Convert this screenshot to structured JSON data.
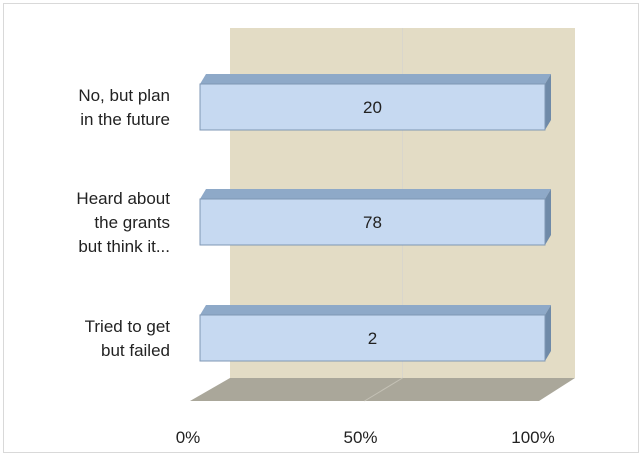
{
  "chart_data": {
    "type": "bar",
    "orientation": "horizontal",
    "stacked_percent": true,
    "three_d": true,
    "categories": [
      [
        "No, but plan",
        "in the future"
      ],
      [
        "Heard about",
        "the grants",
        "but think it..."
      ],
      [
        "Tried to get",
        "but failed"
      ]
    ],
    "series": [
      {
        "values": [
          20,
          78,
          2
        ]
      }
    ],
    "xlim": [
      0,
      100
    ],
    "x_ticks": [
      "0%",
      "50%",
      "100%"
    ],
    "title": "",
    "xlabel": "",
    "ylabel": "",
    "grid": true,
    "legend": "none",
    "colors": {
      "bar_front": "#c6d9f1",
      "bar_top": "#8ea9c8",
      "bar_side": "#6f8aa8",
      "bar_edge": "#7f97b4",
      "back_wall": "#e3dcc5",
      "floor": "#aaa79a",
      "gridline": "#d9d6cc"
    }
  }
}
